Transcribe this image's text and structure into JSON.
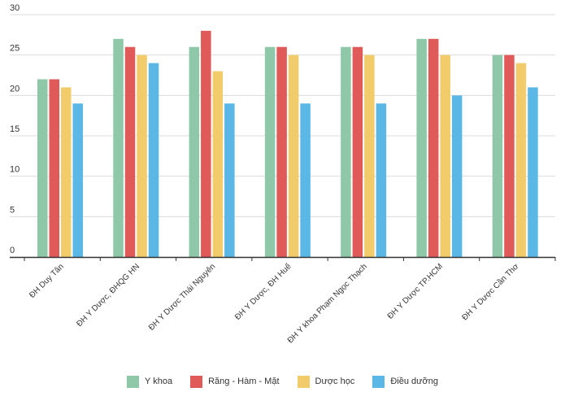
{
  "chart_data": {
    "type": "bar",
    "title": "",
    "xlabel": "",
    "ylabel": "",
    "ylim": [
      0,
      30
    ],
    "yticks": [
      0,
      5,
      10,
      15,
      20,
      25,
      30
    ],
    "grid": true,
    "legend_position": "bottom",
    "categories": [
      "ĐH Duy Tân",
      "ĐH Y Dược, ĐHQG HN",
      "ĐH Y Dược Thái Nguyên",
      "ĐH Y Dược, ĐH Huế",
      "ĐH Y khoa Phạm Ngọc Thạch",
      "ĐH Y Dược TP.HCM",
      "ĐH Y Dược Cần Thơ"
    ],
    "series": [
      {
        "name": "Y khoa",
        "color": "#8ec8a8",
        "values": [
          22,
          27,
          26,
          26,
          26,
          27,
          25
        ]
      },
      {
        "name": "Răng - Hàm - Mặt",
        "color": "#e05a59",
        "values": [
          22,
          26,
          28,
          26,
          26,
          27,
          25
        ]
      },
      {
        "name": "Dược học",
        "color": "#f2cc6b",
        "values": [
          21,
          25,
          23,
          25,
          25,
          25,
          24
        ]
      },
      {
        "name": "Điều dưỡng",
        "color": "#5bb7e6",
        "values": [
          19,
          24,
          19,
          19,
          19,
          20,
          21
        ]
      }
    ]
  }
}
